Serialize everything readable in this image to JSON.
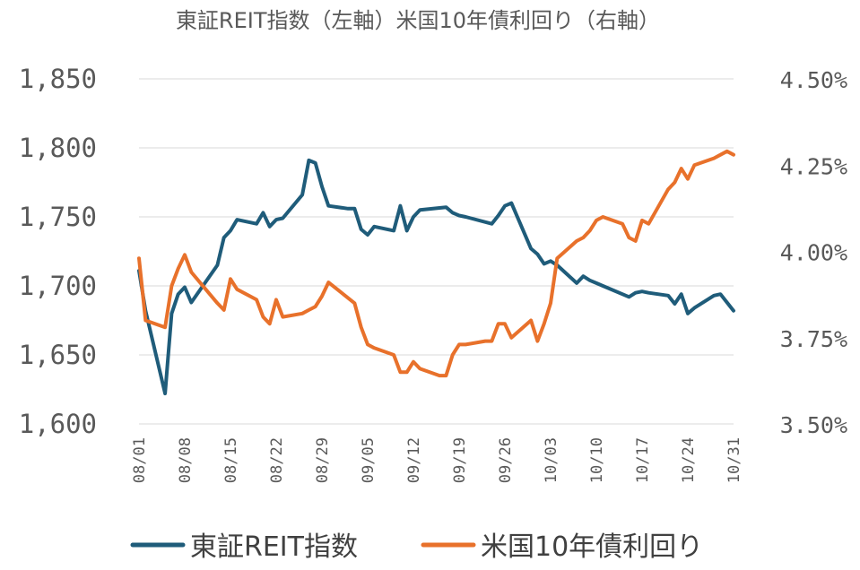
{
  "chart_data": {
    "type": "line",
    "title": "東証REIT指数（左軸）米国10年債利回り（右軸）",
    "xlabel": "",
    "ylabel": "",
    "categories": [
      "08/01",
      "08/08",
      "08/15",
      "08/22",
      "08/29",
      "09/05",
      "09/12",
      "09/19",
      "09/26",
      "10/03",
      "10/10",
      "10/17",
      "10/24",
      "10/31"
    ],
    "x_tick_labels": [
      "08/01",
      "08/08",
      "08/15",
      "08/22",
      "08/29",
      "09/05",
      "09/12",
      "09/19",
      "09/26",
      "10/03",
      "10/10",
      "10/17",
      "10/24",
      "10/31"
    ],
    "y_left": {
      "ylim": [
        1600,
        1850
      ],
      "ticks": [
        "1,600",
        "1,650",
        "1,700",
        "1,750",
        "1,800",
        "1,850"
      ]
    },
    "y_right": {
      "ylim": [
        3.5,
        4.5
      ],
      "ticks": [
        "3.50%",
        "3.75%",
        "4.00%",
        "4.25%",
        "4.50%"
      ]
    },
    "grid": "horizontal",
    "legend_position": "bottom",
    "series": [
      {
        "name": "東証REIT指数",
        "axis": "left",
        "color": "#1F5C7A",
        "x": [
          "2024-08-01",
          "2024-08-02",
          "2024-08-05",
          "2024-08-06",
          "2024-08-07",
          "2024-08-08",
          "2024-08-09",
          "2024-08-13",
          "2024-08-14",
          "2024-08-15",
          "2024-08-16",
          "2024-08-19",
          "2024-08-20",
          "2024-08-21",
          "2024-08-22",
          "2024-08-23",
          "2024-08-26",
          "2024-08-27",
          "2024-08-28",
          "2024-08-29",
          "2024-08-30",
          "2024-09-02",
          "2024-09-03",
          "2024-09-04",
          "2024-09-05",
          "2024-09-06",
          "2024-09-09",
          "2024-09-10",
          "2024-09-11",
          "2024-09-12",
          "2024-09-13",
          "2024-09-17",
          "2024-09-18",
          "2024-09-19",
          "2024-09-20",
          "2024-09-24",
          "2024-09-25",
          "2024-09-26",
          "2024-09-27",
          "2024-09-30",
          "2024-10-01",
          "2024-10-02",
          "2024-10-03",
          "2024-10-04",
          "2024-10-07",
          "2024-10-08",
          "2024-10-09",
          "2024-10-10",
          "2024-10-11",
          "2024-10-15",
          "2024-10-16",
          "2024-10-17",
          "2024-10-18",
          "2024-10-21",
          "2024-10-22",
          "2024-10-23",
          "2024-10-24",
          "2024-10-25",
          "2024-10-28",
          "2024-10-29",
          "2024-10-30",
          "2024-10-31"
        ],
        "values": [
          1711,
          1682,
          1622,
          1680,
          1694,
          1699,
          1688,
          1715,
          1735,
          1740,
          1748,
          1745,
          1753,
          1743,
          1748,
          1749,
          1766,
          1791,
          1789,
          1772,
          1758,
          1756,
          1756,
          1741,
          1737,
          1743,
          1740,
          1758,
          1740,
          1750,
          1755,
          1757,
          1753,
          1751,
          1750,
          1745,
          1751,
          1758,
          1760,
          1727,
          1723,
          1716,
          1718,
          1715,
          1702,
          1707,
          1704,
          1702,
          1700,
          1692,
          1695,
          1696,
          1695,
          1693,
          1687,
          1694,
          1680,
          1684,
          1693,
          1694,
          1688,
          1682
        ]
      },
      {
        "name": "米国10年債利回り",
        "axis": "right",
        "color": "#E8712B",
        "x": [
          "2024-08-01",
          "2024-08-02",
          "2024-08-05",
          "2024-08-06",
          "2024-08-07",
          "2024-08-08",
          "2024-08-09",
          "2024-08-13",
          "2024-08-14",
          "2024-08-15",
          "2024-08-16",
          "2024-08-19",
          "2024-08-20",
          "2024-08-21",
          "2024-08-22",
          "2024-08-23",
          "2024-08-26",
          "2024-08-27",
          "2024-08-28",
          "2024-08-29",
          "2024-08-30",
          "2024-09-03",
          "2024-09-04",
          "2024-09-05",
          "2024-09-06",
          "2024-09-09",
          "2024-09-10",
          "2024-09-11",
          "2024-09-12",
          "2024-09-13",
          "2024-09-16",
          "2024-09-17",
          "2024-09-18",
          "2024-09-19",
          "2024-09-20",
          "2024-09-23",
          "2024-09-24",
          "2024-09-25",
          "2024-09-26",
          "2024-09-27",
          "2024-09-30",
          "2024-10-01",
          "2024-10-02",
          "2024-10-03",
          "2024-10-04",
          "2024-10-07",
          "2024-10-08",
          "2024-10-09",
          "2024-10-10",
          "2024-10-11",
          "2024-10-14",
          "2024-10-15",
          "2024-10-16",
          "2024-10-17",
          "2024-10-18",
          "2024-10-21",
          "2024-10-22",
          "2024-10-23",
          "2024-10-24",
          "2024-10-25",
          "2024-10-28",
          "2024-10-29",
          "2024-10-30",
          "2024-10-31"
        ],
        "values": [
          3.98,
          3.8,
          3.78,
          3.9,
          3.95,
          3.99,
          3.94,
          3.85,
          3.83,
          3.92,
          3.89,
          3.86,
          3.81,
          3.79,
          3.86,
          3.81,
          3.82,
          3.83,
          3.84,
          3.87,
          3.91,
          3.85,
          3.78,
          3.73,
          3.72,
          3.7,
          3.65,
          3.65,
          3.68,
          3.66,
          3.64,
          3.64,
          3.7,
          3.73,
          3.73,
          3.74,
          3.74,
          3.79,
          3.79,
          3.75,
          3.8,
          3.74,
          3.79,
          3.85,
          3.98,
          4.03,
          4.04,
          4.06,
          4.09,
          4.1,
          4.08,
          4.04,
          4.03,
          4.09,
          4.08,
          4.18,
          4.2,
          4.24,
          4.21,
          4.25,
          4.27,
          4.28,
          4.29,
          4.28
        ]
      }
    ]
  }
}
